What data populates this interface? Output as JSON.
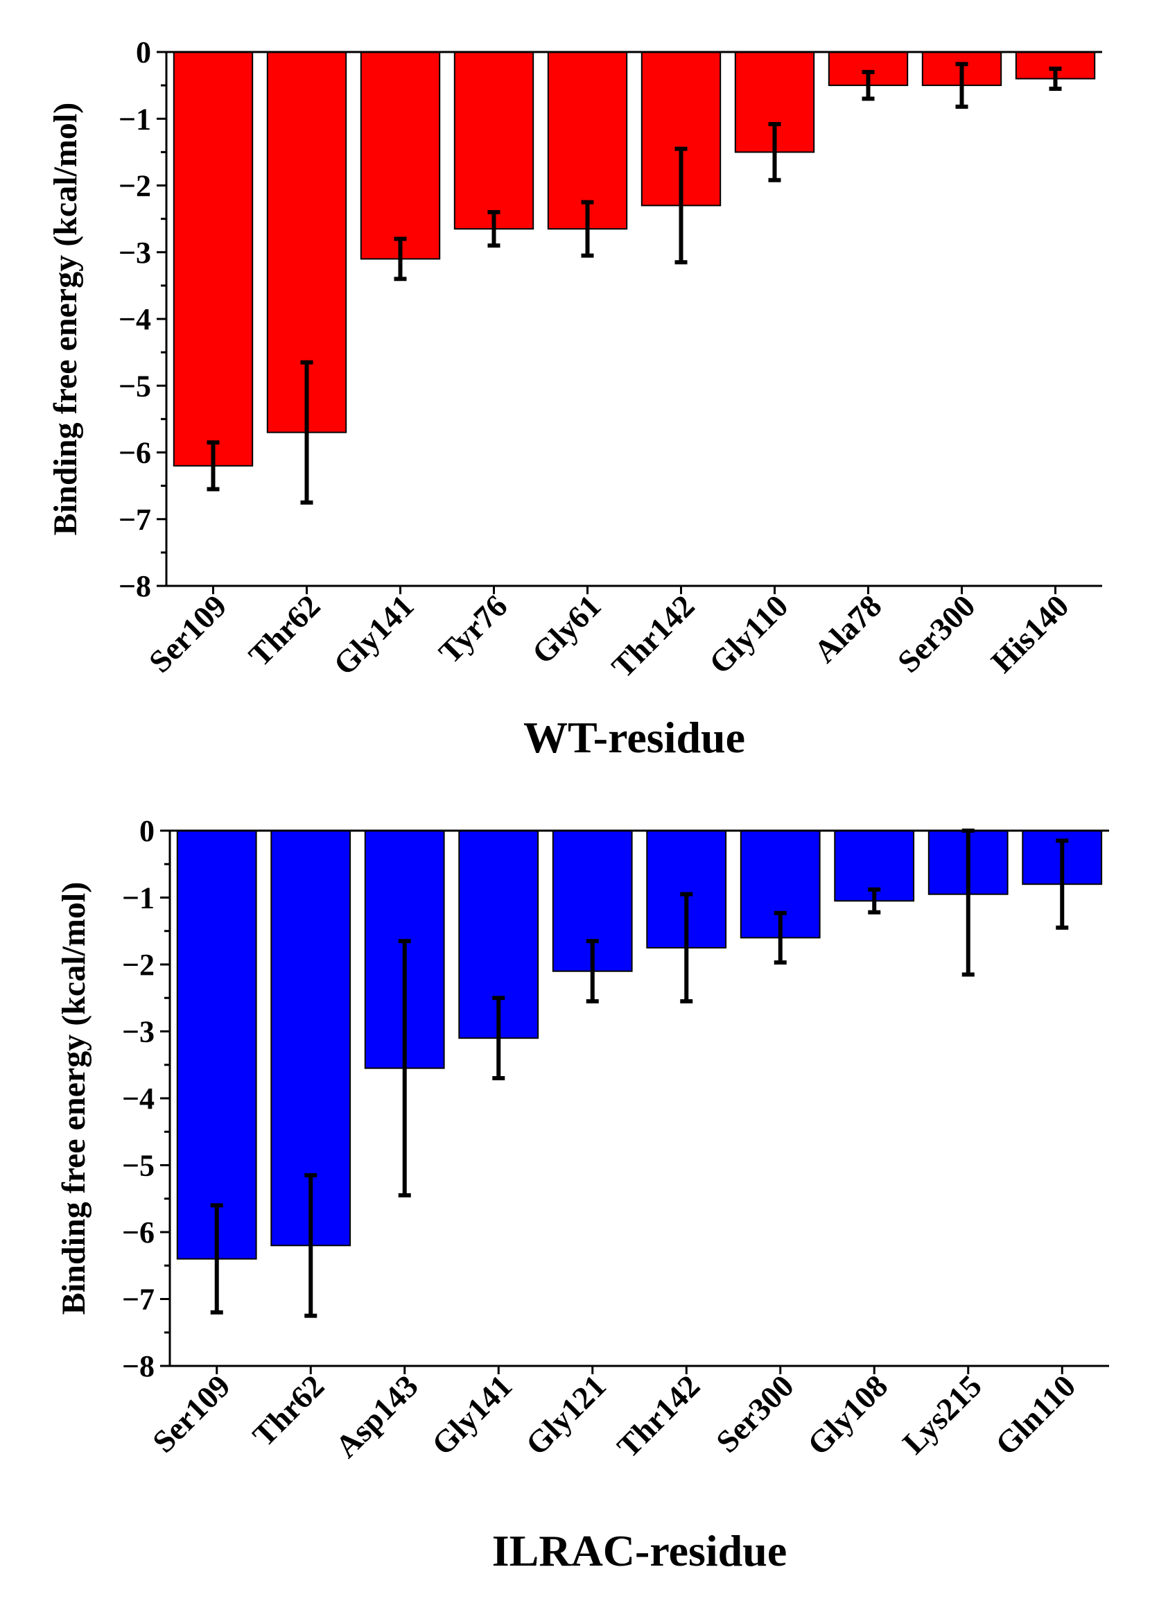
{
  "chart_data": [
    {
      "type": "bar",
      "title": "",
      "xlabel": "WT-residue",
      "ylabel": "Binding free energy (kcal/mol)",
      "ylim": [
        -8,
        0
      ],
      "yticks": [
        0,
        -1,
        -2,
        -3,
        -4,
        -5,
        -6,
        -7,
        -8
      ],
      "ytick_labels": [
        "0",
        "−1",
        "−2",
        "−3",
        "−4",
        "−5",
        "−6",
        "−7",
        "−8"
      ],
      "color": "#ff0000",
      "categories": [
        "Ser109",
        "Thr62",
        "Gly141",
        "Tyr76",
        "Gly61",
        "Thr142",
        "Gly110",
        "Ala78",
        "Ser300",
        "His140"
      ],
      "values": [
        -6.2,
        -5.7,
        -3.1,
        -2.65,
        -2.65,
        -2.3,
        -1.5,
        -0.5,
        -0.5,
        -0.4
      ],
      "error": [
        0.35,
        1.05,
        0.3,
        0.25,
        0.4,
        0.85,
        0.42,
        0.2,
        0.32,
        0.15
      ],
      "grid": false,
      "legend": "none"
    },
    {
      "type": "bar",
      "title": "",
      "xlabel": "ILRAC-residue",
      "ylabel": "Binding free energy (kcal/mol)",
      "ylim": [
        -8,
        0
      ],
      "yticks": [
        0,
        -1,
        -2,
        -3,
        -4,
        -5,
        -6,
        -7,
        -8
      ],
      "ytick_labels": [
        "0",
        "−1",
        "−2",
        "−3",
        "−4",
        "−5",
        "−6",
        "−7",
        "−8"
      ],
      "color": "#0000ff",
      "categories": [
        "Ser109",
        "Thr62",
        "Asp143",
        "Gly141",
        "Gly121",
        "Thr142",
        "Ser300",
        "Gly108",
        "Lys215",
        "Gln110"
      ],
      "values": [
        -6.4,
        -6.2,
        -3.55,
        -3.1,
        -2.1,
        -1.75,
        -1.6,
        -1.05,
        -0.95,
        -0.8
      ],
      "error": [
        0.8,
        1.05,
        1.9,
        0.6,
        0.45,
        0.8,
        0.37,
        0.17,
        1.2,
        0.65
      ],
      "grid": false,
      "legend": "none"
    }
  ]
}
